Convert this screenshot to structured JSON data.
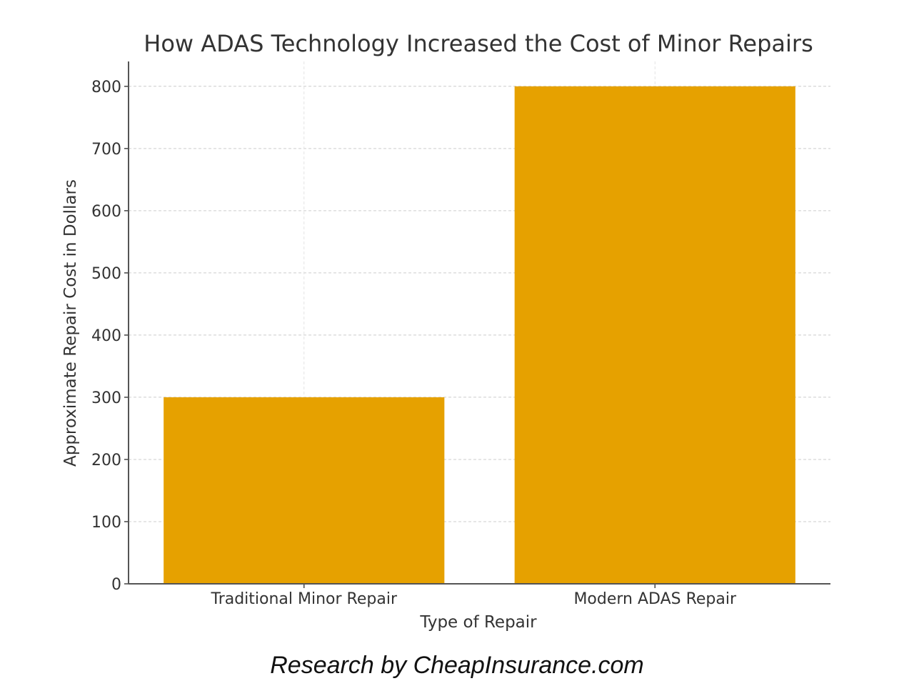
{
  "chart_data": {
    "type": "bar",
    "title": "How ADAS Technology Increased the Cost of Minor Repairs",
    "xlabel": "Type of Repair",
    "ylabel": "Approximate Repair Cost in Dollars",
    "categories": [
      "Traditional Minor Repair",
      "Modern ADAS Repair"
    ],
    "values": [
      300,
      800
    ],
    "ylim": [
      0,
      840
    ],
    "yticks": [
      0,
      100,
      200,
      300,
      400,
      500,
      600,
      700,
      800
    ],
    "grid": true,
    "bar_color": "#E6A100"
  },
  "credit": "Research by CheapInsurance.com"
}
